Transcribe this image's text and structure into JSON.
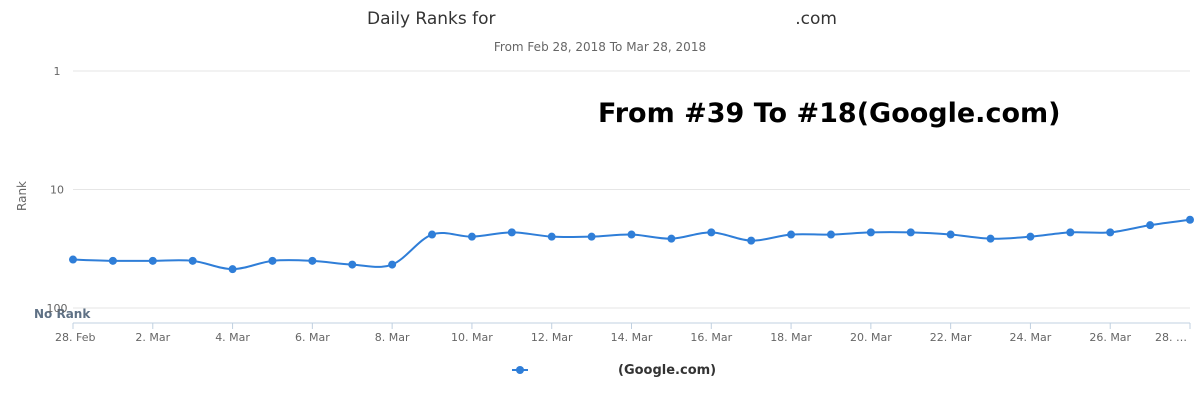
{
  "chart_data": {
    "type": "line",
    "title": "Daily Ranks for",
    "title_suffix": ".com",
    "subtitle": "From Feb 28, 2018 To Mar 28, 2018",
    "ylabel": "Rank",
    "y_scale": "log",
    "y_reversed": true,
    "ylim": [
      1,
      100
    ],
    "y_ticks": [
      "1",
      "10",
      "100"
    ],
    "y_bottom_label": "No Rank",
    "x_tick_labels": [
      "28. Feb",
      "2. Mar",
      "4. Mar",
      "6. Mar",
      "8. Mar",
      "10. Mar",
      "12. Mar",
      "14. Mar",
      "16. Mar",
      "18. Mar",
      "20. Mar",
      "22. Mar",
      "24. Mar",
      "26. Mar",
      "28. …"
    ],
    "annotation": "From #39 To #18(Google.com)",
    "grid": true,
    "legend_position": "bottom",
    "series": [
      {
        "name": "(Google.com)",
        "color": "#2f7ed8",
        "x": [
          "2018-02-28",
          "2018-03-01",
          "2018-03-02",
          "2018-03-03",
          "2018-03-04",
          "2018-03-05",
          "2018-03-06",
          "2018-03-07",
          "2018-03-08",
          "2018-03-09",
          "2018-03-10",
          "2018-03-11",
          "2018-03-12",
          "2018-03-13",
          "2018-03-14",
          "2018-03-15",
          "2018-03-16",
          "2018-03-17",
          "2018-03-18",
          "2018-03-19",
          "2018-03-20",
          "2018-03-21",
          "2018-03-22",
          "2018-03-23",
          "2018-03-24",
          "2018-03-25",
          "2018-03-26",
          "2018-03-27",
          "2018-03-28"
        ],
        "values": [
          39,
          40,
          40,
          40,
          47,
          40,
          40,
          43,
          43,
          24,
          25,
          23,
          25,
          25,
          24,
          26,
          23,
          27,
          24,
          24,
          23,
          23,
          24,
          26,
          25,
          23,
          23,
          20,
          18
        ]
      }
    ]
  }
}
